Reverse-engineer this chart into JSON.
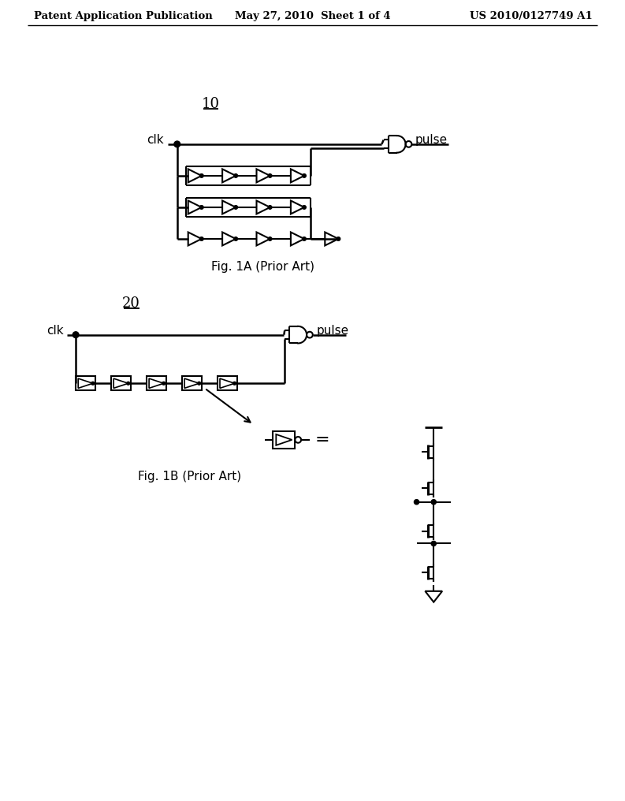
{
  "bg_color": "#ffffff",
  "header_left": "Patent Application Publication",
  "header_center": "May 27, 2010  Sheet 1 of 4",
  "header_right": "US 2010/0127749 A1",
  "fig1a_label": "10",
  "fig1a_caption": "Fig. 1A (Prior Art)",
  "fig1b_label": "20",
  "fig1b_caption": "Fig. 1B (Prior Art)",
  "text_color": "#000000",
  "line_color": "#000000",
  "line_width": 1.5
}
